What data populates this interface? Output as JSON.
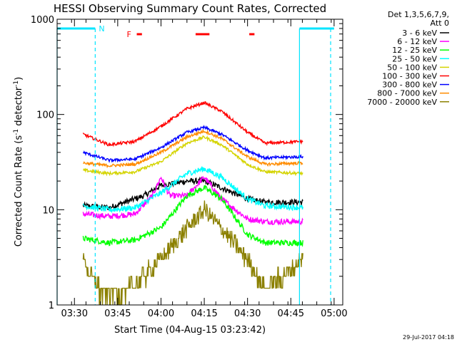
{
  "chart_data": {
    "type": "line",
    "title": "HESSI Observing Summary Count Rates, Corrected",
    "xlabel": "Start Time (04-Aug-15 03:23:42)",
    "ylabel": "Corrected Count Rate (s⁻¹ detector⁻¹)",
    "ylabel_main": "Corrected Count Rate (s",
    "ylabel_sup1": "-1",
    "ylabel_mid": " detector",
    "ylabel_sup2": "-1",
    "ylabel_end": ")",
    "yscale": "log",
    "ylim": [
      1,
      1000
    ],
    "xlim": [
      3.4,
      5.05
    ],
    "xticks": [
      {
        "t": 3.5,
        "label": "03:30"
      },
      {
        "t": 3.75,
        "label": "03:45"
      },
      {
        "t": 4.0,
        "label": "04:00"
      },
      {
        "t": 4.25,
        "label": "04:15"
      },
      {
        "t": 4.5,
        "label": "04:30"
      },
      {
        "t": 4.75,
        "label": "04:45"
      },
      {
        "t": 5.0,
        "label": "05:00"
      }
    ],
    "yticks": [
      {
        "v": 1,
        "label": "1"
      },
      {
        "v": 10,
        "label": "10"
      },
      {
        "v": 100,
        "label": "100"
      },
      {
        "v": 1000,
        "label": "1000"
      }
    ],
    "legend_header": [
      "Det 1,3,5,6,7,9,",
      "Att 0"
    ],
    "legend_position": "top-right, outside plot",
    "data_start": 3.55,
    "data_end": 4.82,
    "night_markers": {
      "color": "#00e5ff",
      "label": "N",
      "bars": [
        [
          3.4,
          3.62
        ],
        [
          4.8,
          5.0
        ]
      ],
      "solid_lines": [
        3.4,
        4.8
      ],
      "dashed_lines": [
        3.62,
        4.98
      ]
    },
    "flare_markers": {
      "color": "#ff0000",
      "label": "F",
      "segments": [
        [
          3.86,
          3.89
        ],
        [
          4.2,
          4.28
        ],
        [
          4.51,
          4.54
        ]
      ]
    },
    "series": [
      {
        "name": "3 - 6 keV",
        "color": "#000000",
        "t": [
          3.55,
          3.7,
          3.9,
          4.0,
          4.15,
          4.25,
          4.35,
          4.5,
          4.6,
          4.82
        ],
        "values": [
          11,
          10.5,
          14,
          18,
          20,
          20,
          17,
          13,
          12,
          12
        ]
      },
      {
        "name": "6 - 12 keV",
        "color": "#ff00ff",
        "t": [
          3.55,
          3.7,
          3.85,
          3.95,
          4.0,
          4.05,
          4.15,
          4.25,
          4.35,
          4.5,
          4.6,
          4.82
        ],
        "values": [
          9,
          8.5,
          9,
          14,
          22,
          14,
          14,
          22,
          13,
          8,
          7.5,
          7.5
        ]
      },
      {
        "name": "12 - 25 keV",
        "color": "#00ff00",
        "t": [
          3.55,
          3.7,
          3.85,
          4.0,
          4.15,
          4.25,
          4.35,
          4.5,
          4.6,
          4.82
        ],
        "values": [
          5,
          4.5,
          4.8,
          6.5,
          14,
          17,
          13,
          5.5,
          4.5,
          4.5
        ]
      },
      {
        "name": "25 - 50 keV",
        "color": "#00ffff",
        "t": [
          3.55,
          3.7,
          3.85,
          4.0,
          4.15,
          4.25,
          4.35,
          4.5,
          4.6,
          4.82
        ],
        "values": [
          11,
          10,
          10.5,
          15,
          24,
          27,
          22,
          13,
          11,
          10.5
        ]
      },
      {
        "name": "50 - 100 keV",
        "color": "#d4d400",
        "t": [
          3.55,
          3.7,
          3.85,
          4.0,
          4.15,
          4.25,
          4.35,
          4.5,
          4.6,
          4.82
        ],
        "values": [
          26,
          24,
          25,
          32,
          50,
          58,
          48,
          30,
          25,
          24
        ]
      },
      {
        "name": "100 - 300 keV",
        "color": "#ff0000",
        "t": [
          3.55,
          3.7,
          3.85,
          4.0,
          4.15,
          4.25,
          4.35,
          4.5,
          4.6,
          4.82
        ],
        "values": [
          62,
          48,
          52,
          75,
          115,
          133,
          108,
          65,
          50,
          52
        ]
      },
      {
        "name": "300 - 800 keV",
        "color": "#0000ff",
        "t": [
          3.55,
          3.7,
          3.85,
          4.0,
          4.15,
          4.25,
          4.35,
          4.5,
          4.6,
          4.82
        ],
        "values": [
          40,
          33,
          34,
          45,
          65,
          73,
          62,
          42,
          35,
          36
        ]
      },
      {
        "name": "800 - 7000 keV",
        "color": "#ff8c00",
        "t": [
          3.55,
          3.7,
          3.85,
          4.0,
          4.15,
          4.25,
          4.35,
          4.5,
          4.6,
          4.82
        ],
        "values": [
          31,
          29,
          30,
          40,
          58,
          67,
          56,
          36,
          30,
          31
        ]
      },
      {
        "name": "7000 - 20000 keV",
        "color": "#8b8000",
        "t": [
          3.55,
          3.6,
          3.65,
          3.8,
          3.9,
          4.0,
          4.1,
          4.2,
          4.25,
          4.3,
          4.4,
          4.5,
          4.6,
          4.7,
          4.82
        ],
        "values": [
          3,
          2,
          1.4,
          1.4,
          2,
          3,
          5,
          8,
          10,
          8,
          5,
          3,
          1.5,
          2,
          3
        ]
      }
    ]
  },
  "footer": {
    "date_stamp": "29-Jul-2017 04:18"
  }
}
